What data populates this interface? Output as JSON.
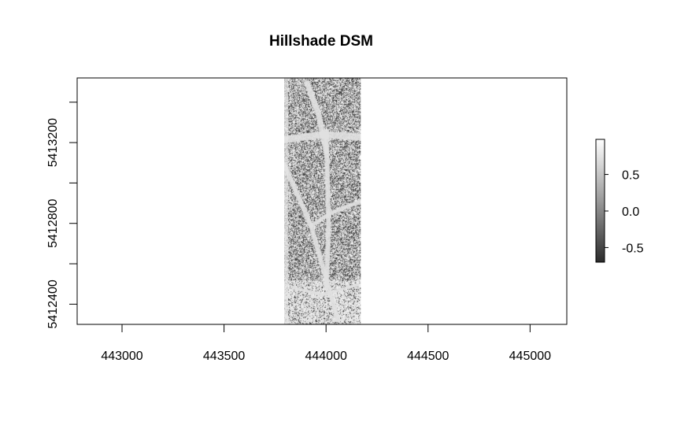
{
  "chart_data": {
    "type": "heatmap",
    "title": "Hillshade DSM",
    "xlabel": "",
    "ylabel": "",
    "xlim": [
      442780,
      445180
    ],
    "ylim": [
      5412300,
      5413520
    ],
    "x_ticks": [
      443000,
      443500,
      444000,
      444500,
      445000
    ],
    "x_tick_labels": [
      "443000",
      "443500",
      "444000",
      "444500",
      "445000"
    ],
    "y_ticks": [
      5412400,
      5412800,
      5413200
    ],
    "y_tick_labels": [
      "5412400",
      "5412800",
      "5413200"
    ],
    "raster_extent": {
      "xmin": 443795,
      "xmax": 444170,
      "ymin": 5412300,
      "ymax": 5413520
    },
    "value_range": [
      -0.7,
      0.98
    ],
    "legend": {
      "position": "right",
      "ticks": [
        0.5,
        0.0,
        -0.5
      ],
      "tick_labels": [
        "0.5",
        "0.0",
        "-0.5"
      ],
      "color_low": "#2b2b2b",
      "color_high": "#ffffff"
    },
    "grid": false
  }
}
